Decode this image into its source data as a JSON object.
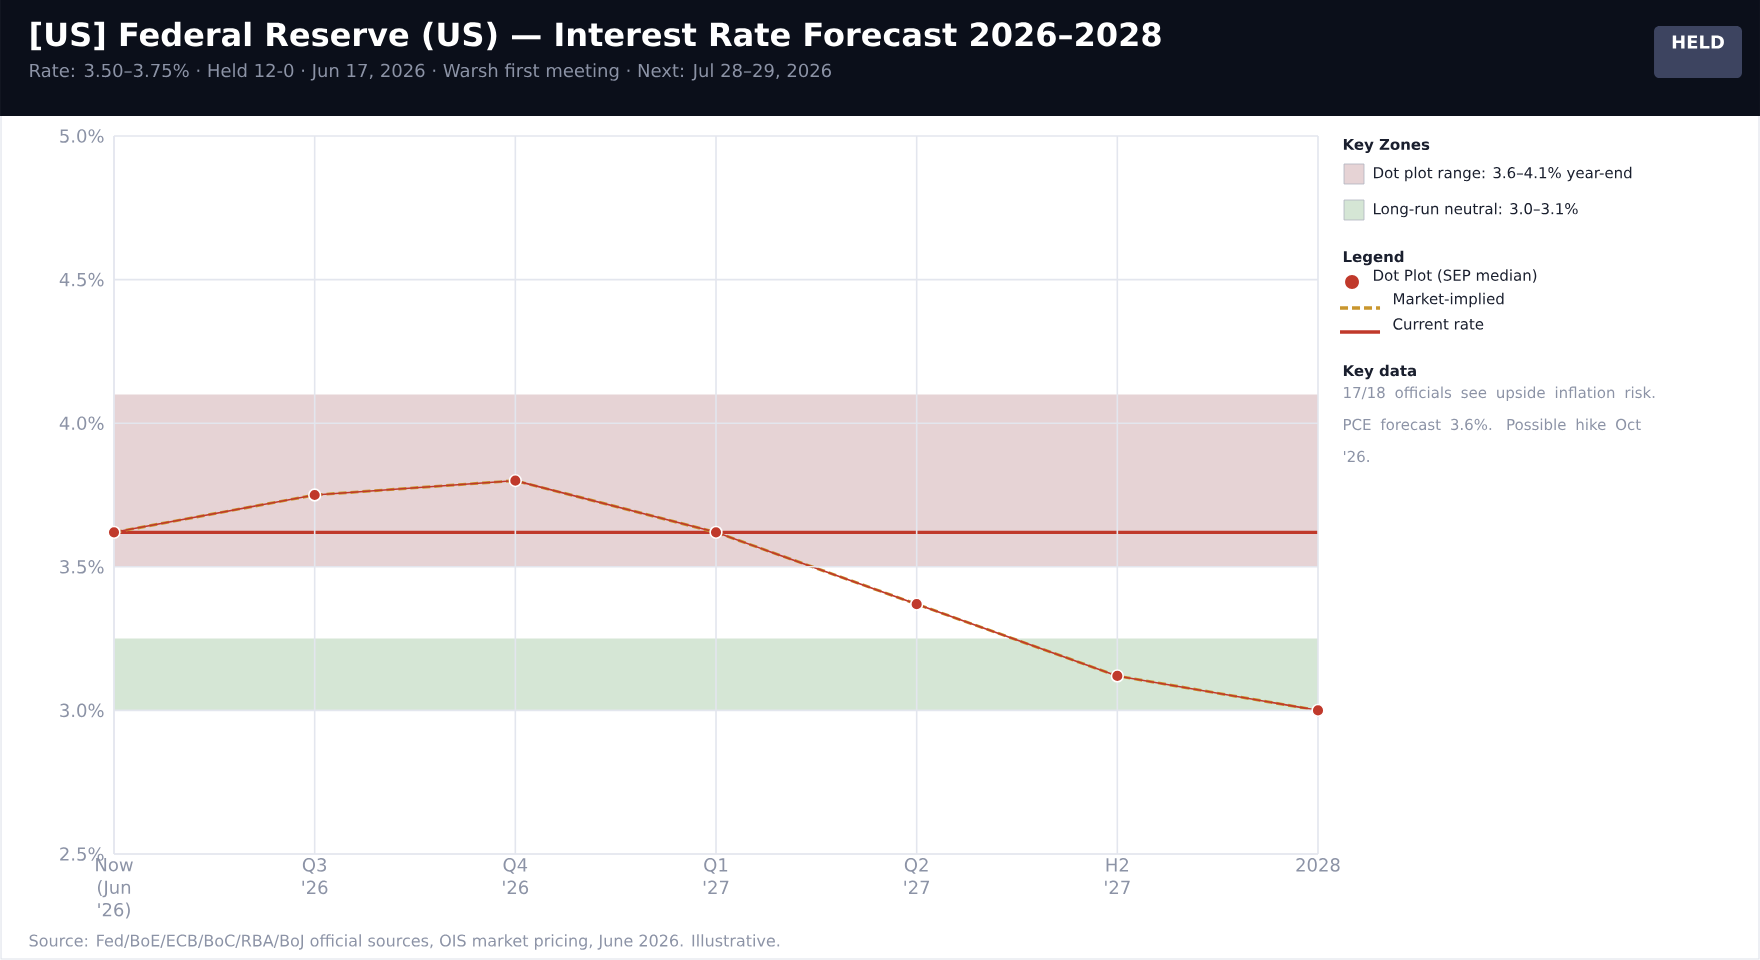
{
  "chart_data": {
    "type": "line",
    "title": "[US]  Federal Reserve (US) — Interest Rate Forecast 2026–2028",
    "subtitle": "Rate: 3.50–3.75%  ·  Held 12-0  ·  Jun 17, 2026  ·  Warsh first meeting  ·  Next: Jul 28–29, 2026",
    "categories": [
      "Now (Jun '26)",
      "Q3 '26",
      "Q4 '26",
      "Q1 '27",
      "Q2 '27",
      "H2 '27",
      "2028"
    ],
    "series": [
      {
        "name": "Market-implied",
        "color": "#c9962e",
        "line_style": "dashed",
        "marker": "none",
        "values": [
          3.62,
          3.75,
          3.8,
          3.62,
          3.37,
          3.12,
          3.0
        ]
      },
      {
        "name": "Dot Plot (SEP median)",
        "color": "#c0392b",
        "line_style": "solid",
        "marker": "circle",
        "values": [
          3.62,
          3.75,
          3.8,
          3.62,
          3.37,
          3.12,
          3.0
        ]
      }
    ],
    "ylim": [
      2.5,
      5.0
    ],
    "yticks": [
      {
        "value": 2.5,
        "label": "2.5%"
      },
      {
        "value": 3.0,
        "label": "3.0%"
      },
      {
        "value": 3.5,
        "label": "3.5%"
      },
      {
        "value": 4.0,
        "label": "4.0%"
      },
      {
        "value": 4.5,
        "label": "4.5%"
      },
      {
        "value": 5.0,
        "label": "5.0%"
      }
    ],
    "bands": [
      {
        "axis": "y",
        "from": 3.5,
        "to": 4.1,
        "label": "Dot plot range: 3.6–4.1% year-end",
        "color": "#e6d3d5"
      },
      {
        "axis": "y",
        "from": 3.0,
        "to": 3.25,
        "label": "Long-run neutral: 3.0–3.1%",
        "color": "#d5e6d5"
      }
    ],
    "ref_lines": [
      {
        "axis": "y",
        "value": 3.62,
        "label": "Current rate",
        "color": "#c0392b"
      }
    ],
    "grid": true,
    "legend": "right",
    "legend_title": "Legend",
    "annotations": [
      "HELD",
      "Key Zones",
      "Key data",
      "17/18 officials see upside inflation risk. PCE forecast 3.6%. Possible hike Oct '26.",
      "Source: Fed/BoE/ECB/BoC/RBA/BoJ official sources, OIS market pricing, June 2026. Illustrative."
    ]
  }
}
